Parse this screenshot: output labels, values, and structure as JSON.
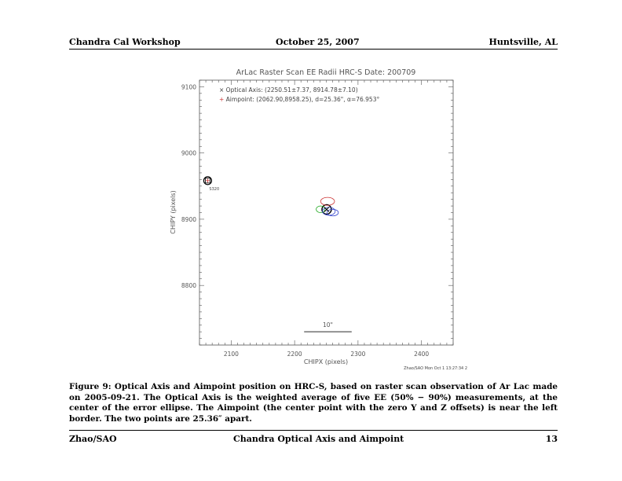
{
  "header": {
    "left": "Chandra Cal Workshop",
    "center": "October 25, 2007",
    "right": "Huntsville, AL"
  },
  "figure": {
    "chart_data": {
      "type": "scatter",
      "title": "ArLac Raster Scan EE Radii  HRC-S  Date: 200709",
      "xlabel": "CHIPX (pixels)",
      "ylabel": "CHIPY (pixels)",
      "xlim": [
        2050,
        2450
      ],
      "ylim": [
        8710,
        9110
      ],
      "xticks": [
        "2100",
        "2200",
        "2300",
        "2400"
      ],
      "yticks": [
        "8800",
        "8900",
        "9000",
        "9100"
      ],
      "xtick_values": [
        2100,
        2200,
        2300,
        2400
      ],
      "ytick_values": [
        8800,
        8900,
        9000,
        9100
      ],
      "legend": [
        {
          "symbol": "×",
          "text": "Optical Axis: (2250.51±7.37, 8914.78±7.10)",
          "color": "#000000"
        },
        {
          "symbol": "+",
          "text": "Aimpoint: (2062.90,8958.25), d=25.36\", α=76.953°",
          "color": "#cc3333"
        }
      ],
      "points": {
        "optical_axis": {
          "x": 2250.51,
          "y": 8914.78,
          "ex": 7.37,
          "ey": 7.1
        },
        "aimpoint": {
          "x": 2062.9,
          "y": 8958.25,
          "label": "S320"
        }
      },
      "ee_ellipses": [
        {
          "x": 2250.5,
          "y": 8914.8,
          "rx": 7.4,
          "ry": 7.1,
          "color": "#000000"
        },
        {
          "x": 2252,
          "y": 8927,
          "rx": 11,
          "ry": 6,
          "color": "#cc3333"
        },
        {
          "x": 2241,
          "y": 8915,
          "rx": 7,
          "ry": 5,
          "color": "#22aa22"
        },
        {
          "x": 2260,
          "y": 8910,
          "rx": 9,
          "ry": 5,
          "color": "#3344cc"
        },
        {
          "x": 2254,
          "y": 8912,
          "rx": 10,
          "ry": 6,
          "color": "#3344cc"
        }
      ],
      "scale_bar": {
        "label": "10\"",
        "x_from": 2215,
        "x_to": 2290,
        "y": 8730
      },
      "grid": false
    },
    "stamp": "Zhao/SAO Mon Oct  1 13:27:34 2"
  },
  "caption": {
    "text": "Figure 9: Optical Axis and Aimpoint position on HRC-S, based on raster scan observation of Ar Lac made on 2005-09-21. The Optical Axis is the weighted average of five EE (50% − 90%) measurements, at the center of the error ellipse. The Aimpoint (the center point with the zero Y and Z offsets) is near the left border. The two points are 25.36″ apart."
  },
  "footer": {
    "left": "Zhao/SAO",
    "center": "Chandra Optical Axis and Aimpoint",
    "right": "13"
  }
}
